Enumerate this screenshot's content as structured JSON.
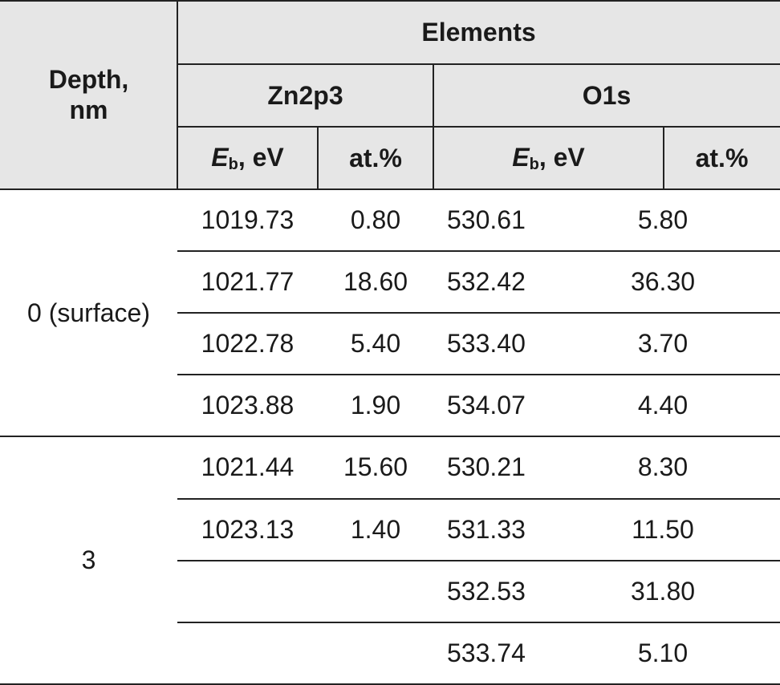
{
  "header": {
    "depth": "Depth, nm",
    "elements": "Elements",
    "zn": "Zn2p3",
    "o": "O1s",
    "eb": {
      "symbol": "E",
      "subscript": "b",
      "unit": ", eV"
    },
    "at": "at.%"
  },
  "groups": [
    {
      "depth": "0 (surface)",
      "rows": [
        [
          "1019.73",
          "0.80",
          "530.61",
          "5.80"
        ],
        [
          "1021.77",
          "18.60",
          "532.42",
          "36.30"
        ],
        [
          "1022.78",
          "5.40",
          "533.40",
          "3.70"
        ],
        [
          "1023.88",
          "1.90",
          "534.07",
          "4.40"
        ]
      ]
    },
    {
      "depth": "3",
      "rows": [
        [
          "1021.44",
          "15.60",
          "530.21",
          "8.30"
        ],
        [
          "1023.13",
          "1.40",
          "531.33",
          "11.50"
        ],
        [
          null,
          null,
          "532.53",
          "31.80"
        ],
        [
          null,
          null,
          "533.74",
          "5.10"
        ]
      ]
    }
  ]
}
